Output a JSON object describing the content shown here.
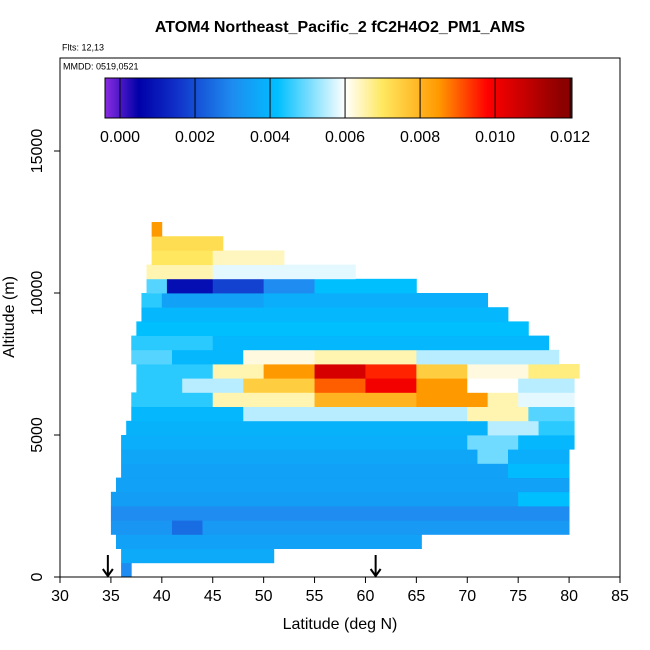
{
  "chart_data": {
    "type": "heatmap",
    "title": "ATOM4 Northeast_Pacific_2 fC2H4O2_PM1_AMS",
    "flights": "Flts: 12,13",
    "dates": "MMDD: 0519,0521",
    "x_label": "Latitude (deg N)",
    "y_label": "Altitude (m)",
    "xlim": [
      30,
      85
    ],
    "xticks": [
      30,
      35,
      40,
      45,
      50,
      55,
      60,
      65,
      70,
      75,
      80,
      85
    ],
    "ylim": [
      0,
      18275
    ],
    "yticks": [
      0,
      5000,
      10000,
      15000
    ],
    "colorbar_lim": [
      -0.0004,
      0.01205
    ],
    "colorbar_ticks": [
      {
        "value": 0,
        "label": "0.000"
      },
      {
        "value": 0.002,
        "label": "0.002"
      },
      {
        "value": 0.004,
        "label": "0.004"
      },
      {
        "value": 0.006,
        "label": "0.006"
      },
      {
        "value": 0.008,
        "label": "0.008"
      },
      {
        "value": 0.01,
        "label": "0.010"
      },
      {
        "value": 0.012,
        "label": "0.012"
      }
    ],
    "colorscale": [
      [
        -0.0004,
        "#8a2be2"
      ],
      [
        0.0005,
        "#0000a8"
      ],
      [
        0.0015,
        "#1030c8"
      ],
      [
        0.003,
        "#1e8cf0"
      ],
      [
        0.0042,
        "#00bfff"
      ],
      [
        0.006,
        "#ffffff"
      ],
      [
        0.007,
        "#ffe860"
      ],
      [
        0.0085,
        "#ff9900"
      ],
      [
        0.0098,
        "#ff0000"
      ],
      [
        0.0118,
        "#8b0000"
      ]
    ],
    "arrows": [
      34.7,
      61
    ],
    "rows": [
      {
        "alt": [
          0,
          500
        ],
        "lat": [
          36,
          37
        ],
        "values": [
          0.003
        ]
      },
      {
        "alt": [
          500,
          1000
        ],
        "lat": [
          36,
          51
        ],
        "values": [
          0.0037
        ]
      },
      {
        "alt": [
          1000,
          1500
        ],
        "lat": [
          35.5,
          65.5
        ],
        "values": [
          0.0035
        ]
      },
      {
        "alt": [
          1500,
          2000
        ],
        "lat": [
          35,
          41,
          44,
          80
        ],
        "values": [
          0.0032,
          0.0025,
          0.0033
        ]
      },
      {
        "alt": [
          2000,
          2500
        ],
        "lat": [
          35,
          80
        ],
        "values": [
          0.003
        ]
      },
      {
        "alt": [
          2500,
          3000
        ],
        "lat": [
          35,
          75,
          80
        ],
        "values": [
          0.0034,
          0.0042
        ]
      },
      {
        "alt": [
          3000,
          3500
        ],
        "lat": [
          35.5,
          80
        ],
        "values": [
          0.0035
        ]
      },
      {
        "alt": [
          3500,
          4000
        ],
        "lat": [
          36,
          74,
          80
        ],
        "values": [
          0.0035,
          0.0041
        ]
      },
      {
        "alt": [
          4000,
          4500
        ],
        "lat": [
          36,
          71,
          74,
          80
        ],
        "values": [
          0.0036,
          0.005,
          0.0038
        ]
      },
      {
        "alt": [
          4500,
          5000
        ],
        "lat": [
          36,
          70,
          75,
          80.5
        ],
        "values": [
          0.0038,
          0.005,
          0.004
        ]
      },
      {
        "alt": [
          5000,
          5500
        ],
        "lat": [
          36.5,
          72,
          77,
          80.5
        ],
        "values": [
          0.0039,
          0.0055,
          0.0045
        ]
      },
      {
        "alt": [
          5500,
          6000
        ],
        "lat": [
          37,
          48,
          70,
          76,
          80.5
        ],
        "values": [
          0.004,
          0.0055,
          0.0065,
          0.0048
        ]
      },
      {
        "alt": [
          6000,
          6500
        ],
        "lat": [
          37,
          45,
          55,
          65,
          72,
          75,
          80.5
        ],
        "values": [
          0.0045,
          0.0065,
          0.008,
          0.0085,
          0.0065,
          0.0058
        ]
      },
      {
        "alt": [
          6500,
          7000
        ],
        "lat": [
          37.5,
          42,
          48,
          55,
          60,
          65,
          70,
          75,
          80.5
        ],
        "values": [
          0.0045,
          0.0055,
          0.0075,
          0.009,
          0.01,
          0.0085,
          0.006,
          0.0055
        ]
      },
      {
        "alt": [
          7000,
          7500
        ],
        "lat": [
          37.5,
          45,
          50,
          55,
          60,
          65,
          70,
          76,
          81
        ],
        "values": [
          0.0045,
          0.0065,
          0.0085,
          0.0105,
          0.0095,
          0.0075,
          0.0062,
          0.0068
        ]
      },
      {
        "alt": [
          7500,
          8000
        ],
        "lat": [
          37,
          41,
          48,
          55,
          65,
          79
        ],
        "values": [
          0.0048,
          0.004,
          0.0062,
          0.0065,
          0.0055
        ]
      },
      {
        "alt": [
          8000,
          8500
        ],
        "lat": [
          37,
          45,
          78
        ],
        "values": [
          0.0045,
          0.004
        ]
      },
      {
        "alt": [
          8500,
          9000
        ],
        "lat": [
          37.5,
          76
        ],
        "values": [
          0.0042
        ]
      },
      {
        "alt": [
          9000,
          9500
        ],
        "lat": [
          38,
          74
        ],
        "values": [
          0.004
        ]
      },
      {
        "alt": [
          9500,
          10000
        ],
        "lat": [
          38,
          40,
          50,
          72
        ],
        "values": [
          0.0045,
          0.0035,
          0.0038
        ]
      },
      {
        "alt": [
          10000,
          10500
        ],
        "lat": [
          38.5,
          40.5,
          45,
          50,
          55,
          65
        ],
        "values": [
          0.0048,
          0.0008,
          0.0018,
          0.003,
          0.0042
        ]
      },
      {
        "alt": [
          10500,
          11000
        ],
        "lat": [
          38.5,
          45,
          59
        ],
        "values": [
          0.0065,
          0.0058
        ]
      },
      {
        "alt": [
          11000,
          11500
        ],
        "lat": [
          39,
          45,
          52
        ],
        "values": [
          0.007,
          0.0064
        ]
      },
      {
        "alt": [
          11500,
          12000
        ],
        "lat": [
          39,
          46
        ],
        "values": [
          0.0072
        ]
      },
      {
        "alt": [
          12000,
          12500
        ],
        "lat": [
          39,
          40
        ],
        "values": [
          0.0085
        ]
      }
    ]
  }
}
